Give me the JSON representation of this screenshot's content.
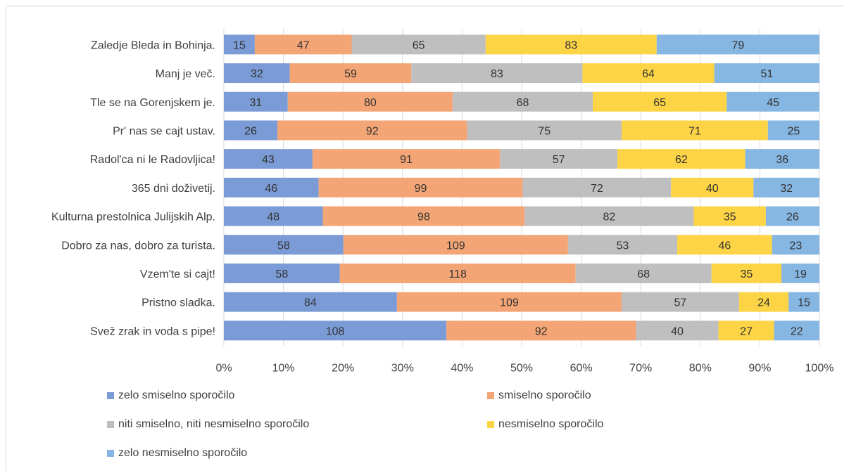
{
  "chart_data": {
    "type": "bar",
    "orientation": "horizontal",
    "stacked": "percent",
    "title": "",
    "xlabel": "",
    "ylabel": "",
    "xlim": [
      0,
      100
    ],
    "x_ticks": [
      "0%",
      "10%",
      "20%",
      "30%",
      "40%",
      "50%",
      "60%",
      "70%",
      "80%",
      "90%",
      "100%"
    ],
    "grid": true,
    "legend_position": "bottom",
    "categories": [
      "Zaledje Bleda in Bohinja.",
      "Manj je več.",
      "Tle se na Gorenjskem je.",
      "Pr' nas se cajt ustav.",
      "Radol'ca ni le Radovljica!",
      "365 dni doživetij.",
      "Kulturna prestolnica Julijskih Alp.",
      "Dobro za nas, dobro za turista.",
      "Vzem'te si cajt!",
      "Pristno sladka.",
      "Svež zrak in voda s pipe!"
    ],
    "series": [
      {
        "name": "zelo smiselno sporočilo",
        "color": "#7b9bd6",
        "label_color": "#333333",
        "values": [
          15,
          32,
          31,
          26,
          43,
          46,
          48,
          58,
          58,
          84,
          108
        ]
      },
      {
        "name": "smiselno sporočilo",
        "color": "#f4a575",
        "label_color": "#333333",
        "values": [
          47,
          59,
          80,
          92,
          91,
          99,
          98,
          109,
          118,
          109,
          92
        ]
      },
      {
        "name": "niti smiselno, niti nesmiselno sporočilo",
        "color": "#bfbfbf",
        "label_color": "#333333",
        "values": [
          65,
          83,
          68,
          75,
          57,
          72,
          82,
          53,
          68,
          57,
          40
        ]
      },
      {
        "name": "nesmiselno sporočilo",
        "color": "#fdd445",
        "label_color": "#333333",
        "values": [
          83,
          64,
          65,
          71,
          62,
          40,
          35,
          46,
          35,
          24,
          27
        ]
      },
      {
        "name": "zelo nesmiselno sporočilo",
        "color": "#86b6e2",
        "label_color": "#333333",
        "values": [
          79,
          51,
          45,
          25,
          36,
          32,
          26,
          23,
          19,
          15,
          22
        ]
      }
    ]
  }
}
